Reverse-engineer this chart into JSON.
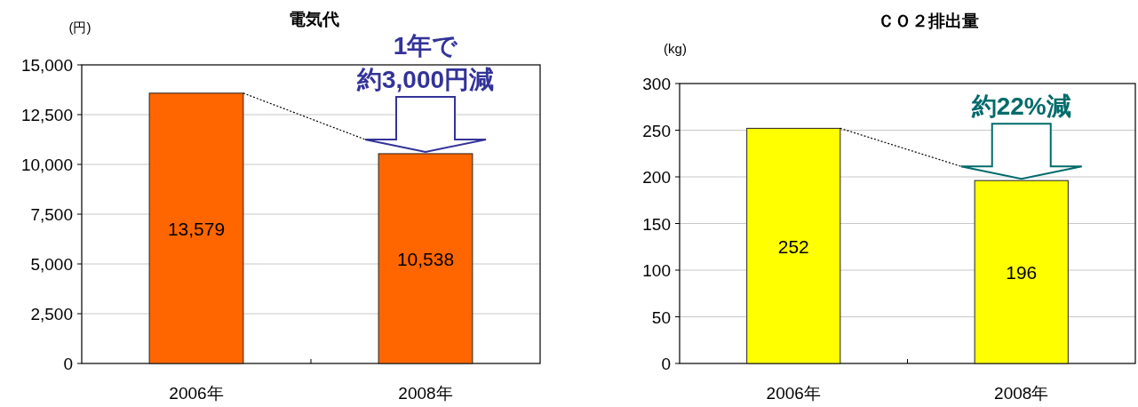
{
  "chart_data": [
    {
      "type": "bar",
      "title": "電気代",
      "ylabel": "(円)",
      "categories": [
        "2006年",
        "2008年"
      ],
      "values": [
        13579,
        10538
      ],
      "color": "#ff6600",
      "value_labels": [
        "13,579",
        "10,538"
      ],
      "ylim": [
        0,
        15000
      ],
      "yticks": [
        0,
        {
          "value": 2500,
          "label": "2,500"
        },
        {
          "value": 5000,
          "label": "5,000"
        },
        {
          "value": 7500,
          "label": "7,500"
        },
        {
          "value": 10000,
          "label": "10,000"
        },
        {
          "value": 12500,
          "label": "12,500"
        },
        {
          "value": 15000,
          "label": "15,000"
        }
      ],
      "grid": "y",
      "annotations": [
        "1年で",
        {
          "text": "約3,000円減",
          "x": "2008年",
          "y": 10538
        }
      ]
    },
    {
      "type": "bar",
      "title": "ＣＯ２排出量",
      "ylabel": "(kg)",
      "categories": [
        "2006年",
        "2008年"
      ],
      "values": [
        252,
        196
      ],
      "color": "#ffff00",
      "value_labels": [
        "252",
        "196"
      ],
      "ylim": [
        0,
        300
      ],
      "yticks": [
        0,
        50,
        100,
        150,
        200,
        250,
        300
      ],
      "grid": "y",
      "annotations": [
        {
          "text": "約22%減",
          "x": "2008年",
          "y": 196
        }
      ]
    }
  ]
}
